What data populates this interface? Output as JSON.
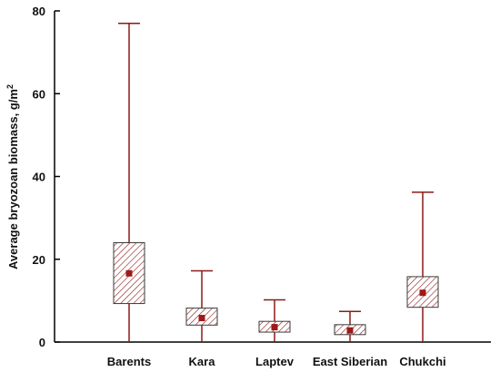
{
  "chart_data": {
    "type": "boxplot",
    "ylabel": "Average bryozoan biomass, g/m",
    "ylabel_superscript": "2",
    "ylim": [
      0,
      80
    ],
    "yticks": [
      0,
      20,
      40,
      60,
      80
    ],
    "categories": [
      "Barents",
      "Kara",
      "Laptev",
      "East Siberian",
      "Chukchi"
    ],
    "boxes": [
      {
        "category": "Barents",
        "min": 0,
        "q1": 9.3,
        "mean": 16.6,
        "q3": 24,
        "max": 77
      },
      {
        "category": "Kara",
        "min": 0,
        "q1": 4.1,
        "mean": 5.8,
        "q3": 8.2,
        "max": 17.2
      },
      {
        "category": "Laptev",
        "min": 0,
        "q1": 2.4,
        "mean": 3.6,
        "q3": 5.0,
        "max": 10.2
      },
      {
        "category": "East Siberian",
        "min": 0,
        "q1": 1.8,
        "mean": 2.8,
        "q3": 4.2,
        "max": 7.4
      },
      {
        "category": "Chukchi",
        "min": 0,
        "q1": 8.4,
        "mean": 11.9,
        "q3": 15.8,
        "max": 36.2
      }
    ],
    "colors": {
      "whisker": "#8b1a1a",
      "box_border": "#3a3a3a",
      "hatch": "#8b1a1a",
      "mean_marker": "#a01818",
      "axis": "#000000"
    },
    "grid": false,
    "legend": "none"
  }
}
